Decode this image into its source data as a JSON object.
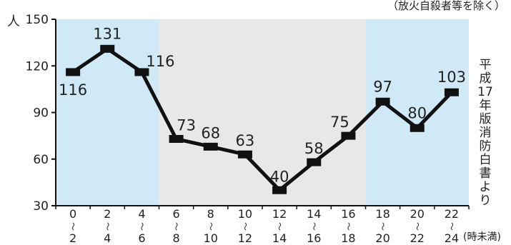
{
  "note": "（放火自殺者等を除く）",
  "source": "平成17年版消防白書より",
  "chart_data": {
    "type": "line",
    "ylabel": "人",
    "xunit": "(時未満)",
    "ylim": [
      30,
      150
    ],
    "yticks": [
      30,
      60,
      90,
      120,
      150
    ],
    "categories": [
      {
        "top": "0",
        "bottom": "2"
      },
      {
        "top": "2",
        "bottom": "4"
      },
      {
        "top": "4",
        "bottom": "6"
      },
      {
        "top": "6",
        "bottom": "8"
      },
      {
        "top": "8",
        "bottom": "10"
      },
      {
        "top": "10",
        "bottom": "12"
      },
      {
        "top": "12",
        "bottom": "14"
      },
      {
        "top": "14",
        "bottom": "16"
      },
      {
        "top": "16",
        "bottom": "18"
      },
      {
        "top": "18",
        "bottom": "20"
      },
      {
        "top": "20",
        "bottom": "22"
      },
      {
        "top": "22",
        "bottom": "24"
      }
    ],
    "tilde": "〜",
    "values": [
      116,
      131,
      116,
      73,
      68,
      63,
      40,
      58,
      75,
      97,
      80,
      103
    ],
    "shaded_bands": [
      {
        "from_index": 0,
        "to_index": 2,
        "color": "#cfe9f7"
      },
      {
        "from_index": 3,
        "to_index": 8,
        "color": "#e8e8e8"
      },
      {
        "from_index": 9,
        "to_index": 11,
        "color": "#cfe9f7"
      }
    ],
    "line_color": "#111111",
    "grid": false
  }
}
